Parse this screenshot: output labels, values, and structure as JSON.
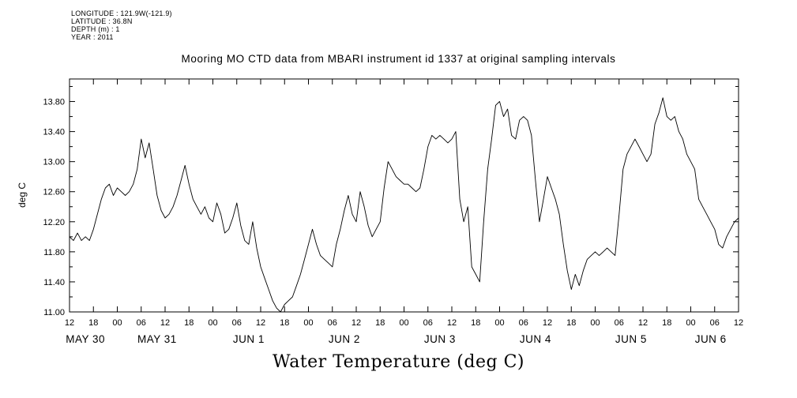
{
  "meta": {
    "lines": [
      "LONGITUDE : 121.9W(-121.9)",
      "LATITUDE : 36.8N",
      "DEPTH (m) : 1",
      "YEAR : 2011"
    ]
  },
  "title": "Mooring MO CTD data from MBARI instrument id 1337 at original sampling intervals",
  "y_axis_label": "deg C",
  "x_axis_title": "Water Temperature (deg C)",
  "colors": {
    "line": "#000000",
    "background": "#ffffff",
    "text": "#000000"
  },
  "chart_data": {
    "type": "line",
    "title": "Mooring MO CTD data from MBARI instrument id 1337 at original sampling intervals",
    "ylabel": "deg C",
    "xlabel": "Water Temperature (deg C)",
    "ylim": [
      11.0,
      14.1
    ],
    "x_range_hours": [
      0,
      168
    ],
    "x_tick_interval_hours": 6,
    "x_tick_labels": [
      "12",
      "18",
      "00",
      "06",
      "12",
      "18",
      "00",
      "06",
      "12",
      "18",
      "00",
      "06",
      "12",
      "18",
      "00",
      "06",
      "12",
      "18",
      "00",
      "06",
      "12",
      "18",
      "00",
      "06",
      "12",
      "18",
      "00",
      "06",
      "12"
    ],
    "y_ticks": [
      "11.00",
      "11.40",
      "11.80",
      "12.20",
      "12.60",
      "13.00",
      "13.40",
      "13.80"
    ],
    "date_labels": [
      {
        "label": "MAY 30",
        "hour": 4
      },
      {
        "label": "MAY 31",
        "hour": 22
      },
      {
        "label": "JUN 1",
        "hour": 45
      },
      {
        "label": "JUN 2",
        "hour": 69
      },
      {
        "label": "JUN 3",
        "hour": 93
      },
      {
        "label": "JUN 4",
        "hour": 117
      },
      {
        "label": "JUN 5",
        "hour": 141
      },
      {
        "label": "JUN 6",
        "hour": 161
      }
    ],
    "grid": false,
    "legend": "none",
    "series": [
      {
        "name": "water_temperature_degC",
        "x_start_hour": 0,
        "x_step_hours": 1,
        "values": [
          12.0,
          11.95,
          12.05,
          11.95,
          12.0,
          11.95,
          12.1,
          12.3,
          12.5,
          12.65,
          12.7,
          12.55,
          12.65,
          12.6,
          12.55,
          12.6,
          12.7,
          12.9,
          13.3,
          13.05,
          13.25,
          12.9,
          12.55,
          12.35,
          12.25,
          12.3,
          12.4,
          12.55,
          12.75,
          12.95,
          12.7,
          12.5,
          12.4,
          12.3,
          12.4,
          12.25,
          12.2,
          12.45,
          12.3,
          12.05,
          12.1,
          12.25,
          12.45,
          12.15,
          11.95,
          11.9,
          12.2,
          11.85,
          11.6,
          11.45,
          11.3,
          11.15,
          11.05,
          11.0,
          11.1,
          11.15,
          11.2,
          11.35,
          11.5,
          11.7,
          11.9,
          12.1,
          11.9,
          11.75,
          11.7,
          11.65,
          11.6,
          11.9,
          12.1,
          12.35,
          12.55,
          12.3,
          12.2,
          12.6,
          12.4,
          12.15,
          12.0,
          12.1,
          12.2,
          12.65,
          13.0,
          12.9,
          12.8,
          12.75,
          12.7,
          12.7,
          12.65,
          12.6,
          12.65,
          12.9,
          13.2,
          13.35,
          13.3,
          13.35,
          13.3,
          13.25,
          13.3,
          13.4,
          12.5,
          12.2,
          12.4,
          11.6,
          11.5,
          11.4,
          12.2,
          12.9,
          13.3,
          13.75,
          13.8,
          13.6,
          13.7,
          13.35,
          13.3,
          13.55,
          13.6,
          13.55,
          13.35,
          12.75,
          12.2,
          12.5,
          12.8,
          12.65,
          12.5,
          12.3,
          11.9,
          11.55,
          11.3,
          11.5,
          11.35,
          11.55,
          11.7,
          11.75,
          11.8,
          11.75,
          11.8,
          11.85,
          11.8,
          11.75,
          12.3,
          12.9,
          13.1,
          13.2,
          13.3,
          13.2,
          13.1,
          13.0,
          13.1,
          13.5,
          13.65,
          13.85,
          13.6,
          13.55,
          13.6,
          13.4,
          13.3,
          13.1,
          13.0,
          12.9,
          12.5,
          12.4,
          12.3,
          12.2,
          12.1,
          11.9,
          11.85,
          12.0,
          12.1,
          12.2,
          12.25
        ]
      }
    ]
  }
}
